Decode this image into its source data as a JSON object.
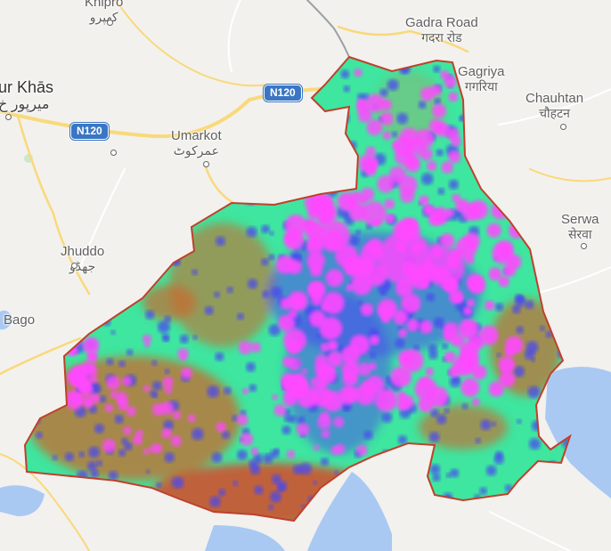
{
  "places": [
    {
      "id": "khipro",
      "name": "Khipro",
      "native": "کھپرو"
    },
    {
      "id": "gadra-road",
      "name": "Gadra Road",
      "native": "गदरा रोड"
    },
    {
      "id": "gagriya",
      "name": "Gagriya",
      "native": "गगरिया"
    },
    {
      "id": "chauhtan",
      "name": "Chauhtan",
      "native": "चौहटन"
    },
    {
      "id": "mirpur-khas",
      "name": "ur Khās",
      "native": "میرپور خ"
    },
    {
      "id": "umarkot",
      "name": "Umarkot",
      "native": "عمرکوٹ"
    },
    {
      "id": "serwa",
      "name": "Serwa",
      "native": "सेरवा"
    },
    {
      "id": "jhuddo",
      "name": "Jhuddo",
      "native": "جھڈو"
    },
    {
      "id": "bago",
      "name": "Bago",
      "native": ""
    }
  ],
  "roads": [
    {
      "id": "n120-east",
      "shield": "N120"
    },
    {
      "id": "n120-west",
      "shield": "N120"
    }
  ],
  "colors": {
    "background": "#f2f1ee",
    "water": "#a9c9f3",
    "road_major": "#f9d97a",
    "boundary": "#c0402b",
    "heat_low": "#3ee6a0",
    "heat_mid": "#4a48f0",
    "heat_high": "#ff49ff",
    "heat_dry": "#c96a2e"
  }
}
